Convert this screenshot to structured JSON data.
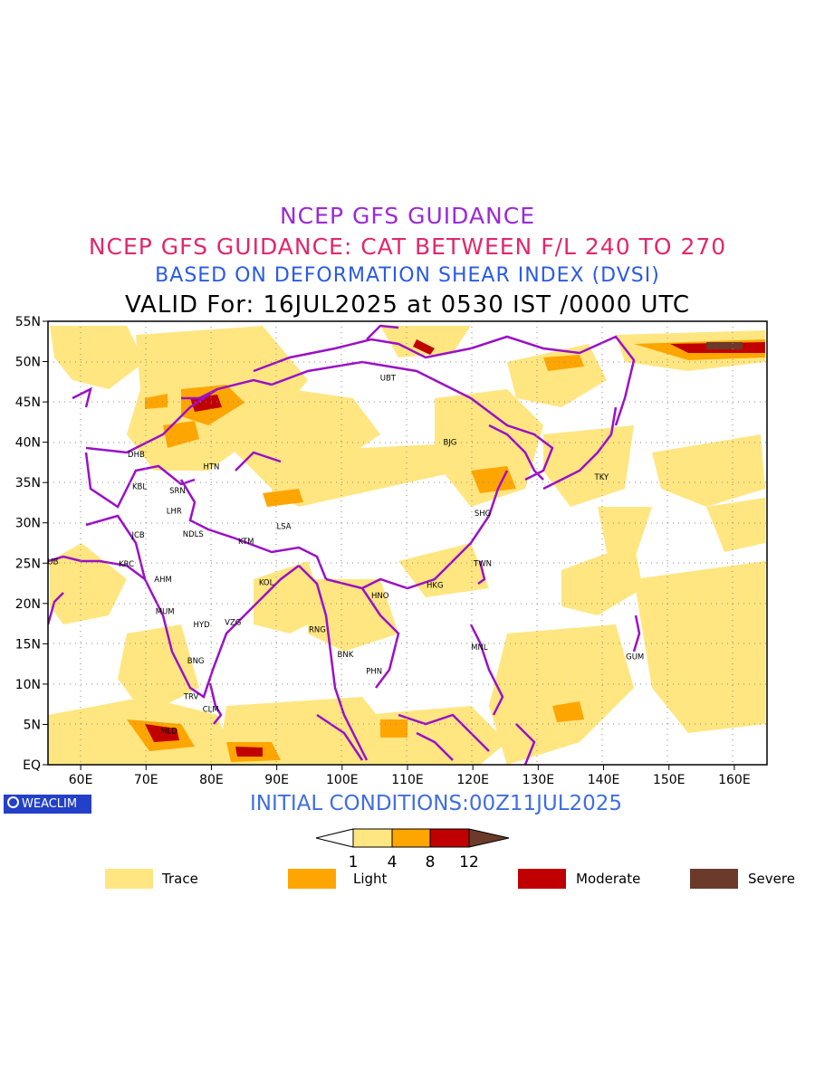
{
  "titles": {
    "line1": "NCEP GFS GUIDANCE",
    "line2": "NCEP GFS GUIDANCE: CAT BETWEEN F/L 240 TO 270",
    "line3": "BASED ON DEFORMATION SHEAR INDEX (DVSI)",
    "line4": "VALID For: 16JUL2025 at 0530 IST /0000 UTC"
  },
  "axes": {
    "lat_labels": [
      "55N",
      "50N",
      "45N",
      "40N",
      "35N",
      "30N",
      "25N",
      "20N",
      "15N",
      "10N",
      "5N",
      "EQ"
    ],
    "lon_labels": [
      "60E",
      "70E",
      "80E",
      "90E",
      "100E",
      "110E",
      "120E",
      "130E",
      "140E",
      "150E",
      "160E"
    ],
    "lat_range": [
      0,
      55
    ],
    "lon_range": [
      55,
      165
    ]
  },
  "cities": [
    {
      "code": "UBT",
      "lon": 107,
      "lat": 48
    },
    {
      "code": "DHB",
      "lon": 68.5,
      "lat": 38.5
    },
    {
      "code": "HTN",
      "lon": 80,
      "lat": 37
    },
    {
      "code": "BJG",
      "lon": 116.5,
      "lat": 40
    },
    {
      "code": "KBL",
      "lon": 69,
      "lat": 34.5
    },
    {
      "code": "SRN",
      "lon": 74.8,
      "lat": 34
    },
    {
      "code": "TKY",
      "lon": 139.7,
      "lat": 35.7
    },
    {
      "code": "LHR",
      "lon": 74.3,
      "lat": 31.5
    },
    {
      "code": "SHG",
      "lon": 121.5,
      "lat": 31.2
    },
    {
      "code": "LSA",
      "lon": 91.1,
      "lat": 29.6
    },
    {
      "code": "JCB",
      "lon": 68.8,
      "lat": 28.5
    },
    {
      "code": "NDLS",
      "lon": 77.2,
      "lat": 28.6
    },
    {
      "code": "KTM",
      "lon": 85.3,
      "lat": 27.7
    },
    {
      "code": "DUB",
      "lon": 55.3,
      "lat": 25.2
    },
    {
      "code": "KRC",
      "lon": 67,
      "lat": 24.9
    },
    {
      "code": "TWN",
      "lon": 121.5,
      "lat": 25
    },
    {
      "code": "AHM",
      "lon": 72.6,
      "lat": 23
    },
    {
      "code": "KOL",
      "lon": 88.4,
      "lat": 22.6
    },
    {
      "code": "HKG",
      "lon": 114.2,
      "lat": 22.3
    },
    {
      "code": "HNO",
      "lon": 105.8,
      "lat": 21
    },
    {
      "code": "MUM",
      "lon": 72.9,
      "lat": 19
    },
    {
      "code": "HYD",
      "lon": 78.5,
      "lat": 17.4
    },
    {
      "code": "VZG",
      "lon": 83.3,
      "lat": 17.7
    },
    {
      "code": "RNG",
      "lon": 96.2,
      "lat": 16.8
    },
    {
      "code": "BNK",
      "lon": 100.5,
      "lat": 13.7
    },
    {
      "code": "MNL",
      "lon": 121,
      "lat": 14.6
    },
    {
      "code": "GUM",
      "lon": 144.8,
      "lat": 13.4
    },
    {
      "code": "BNG",
      "lon": 77.6,
      "lat": 12.9
    },
    {
      "code": "PHN",
      "lon": 104.9,
      "lat": 11.6
    },
    {
      "code": "TRV",
      "lon": 76.9,
      "lat": 8.5
    },
    {
      "code": "CLM",
      "lon": 79.9,
      "lat": 6.9
    },
    {
      "code": "MLD",
      "lon": 73.5,
      "lat": 4.2
    }
  ],
  "footer": {
    "initial_conditions": "INITIAL CONDITIONS:00Z11JUL2025",
    "logo_text": "WEACLIM"
  },
  "colorbar": {
    "ticks": [
      "1",
      "4",
      "8",
      "12"
    ],
    "colors": [
      "#ffe680",
      "#ffa500",
      "#c00000",
      "#6b3a2a"
    ]
  },
  "legend": [
    {
      "label": "Trace",
      "color": "#ffe680"
    },
    {
      "label": "Light",
      "color": "#ffa500"
    },
    {
      "label": "Moderate",
      "color": "#c00000"
    },
    {
      "label": "Severe",
      "color": "#6b3a2a"
    }
  ],
  "colors": {
    "boundary": "#9a10c8",
    "trace": "#ffe680",
    "light": "#ffa500",
    "moderate": "#c00000",
    "severe": "#6b3a2a"
  }
}
